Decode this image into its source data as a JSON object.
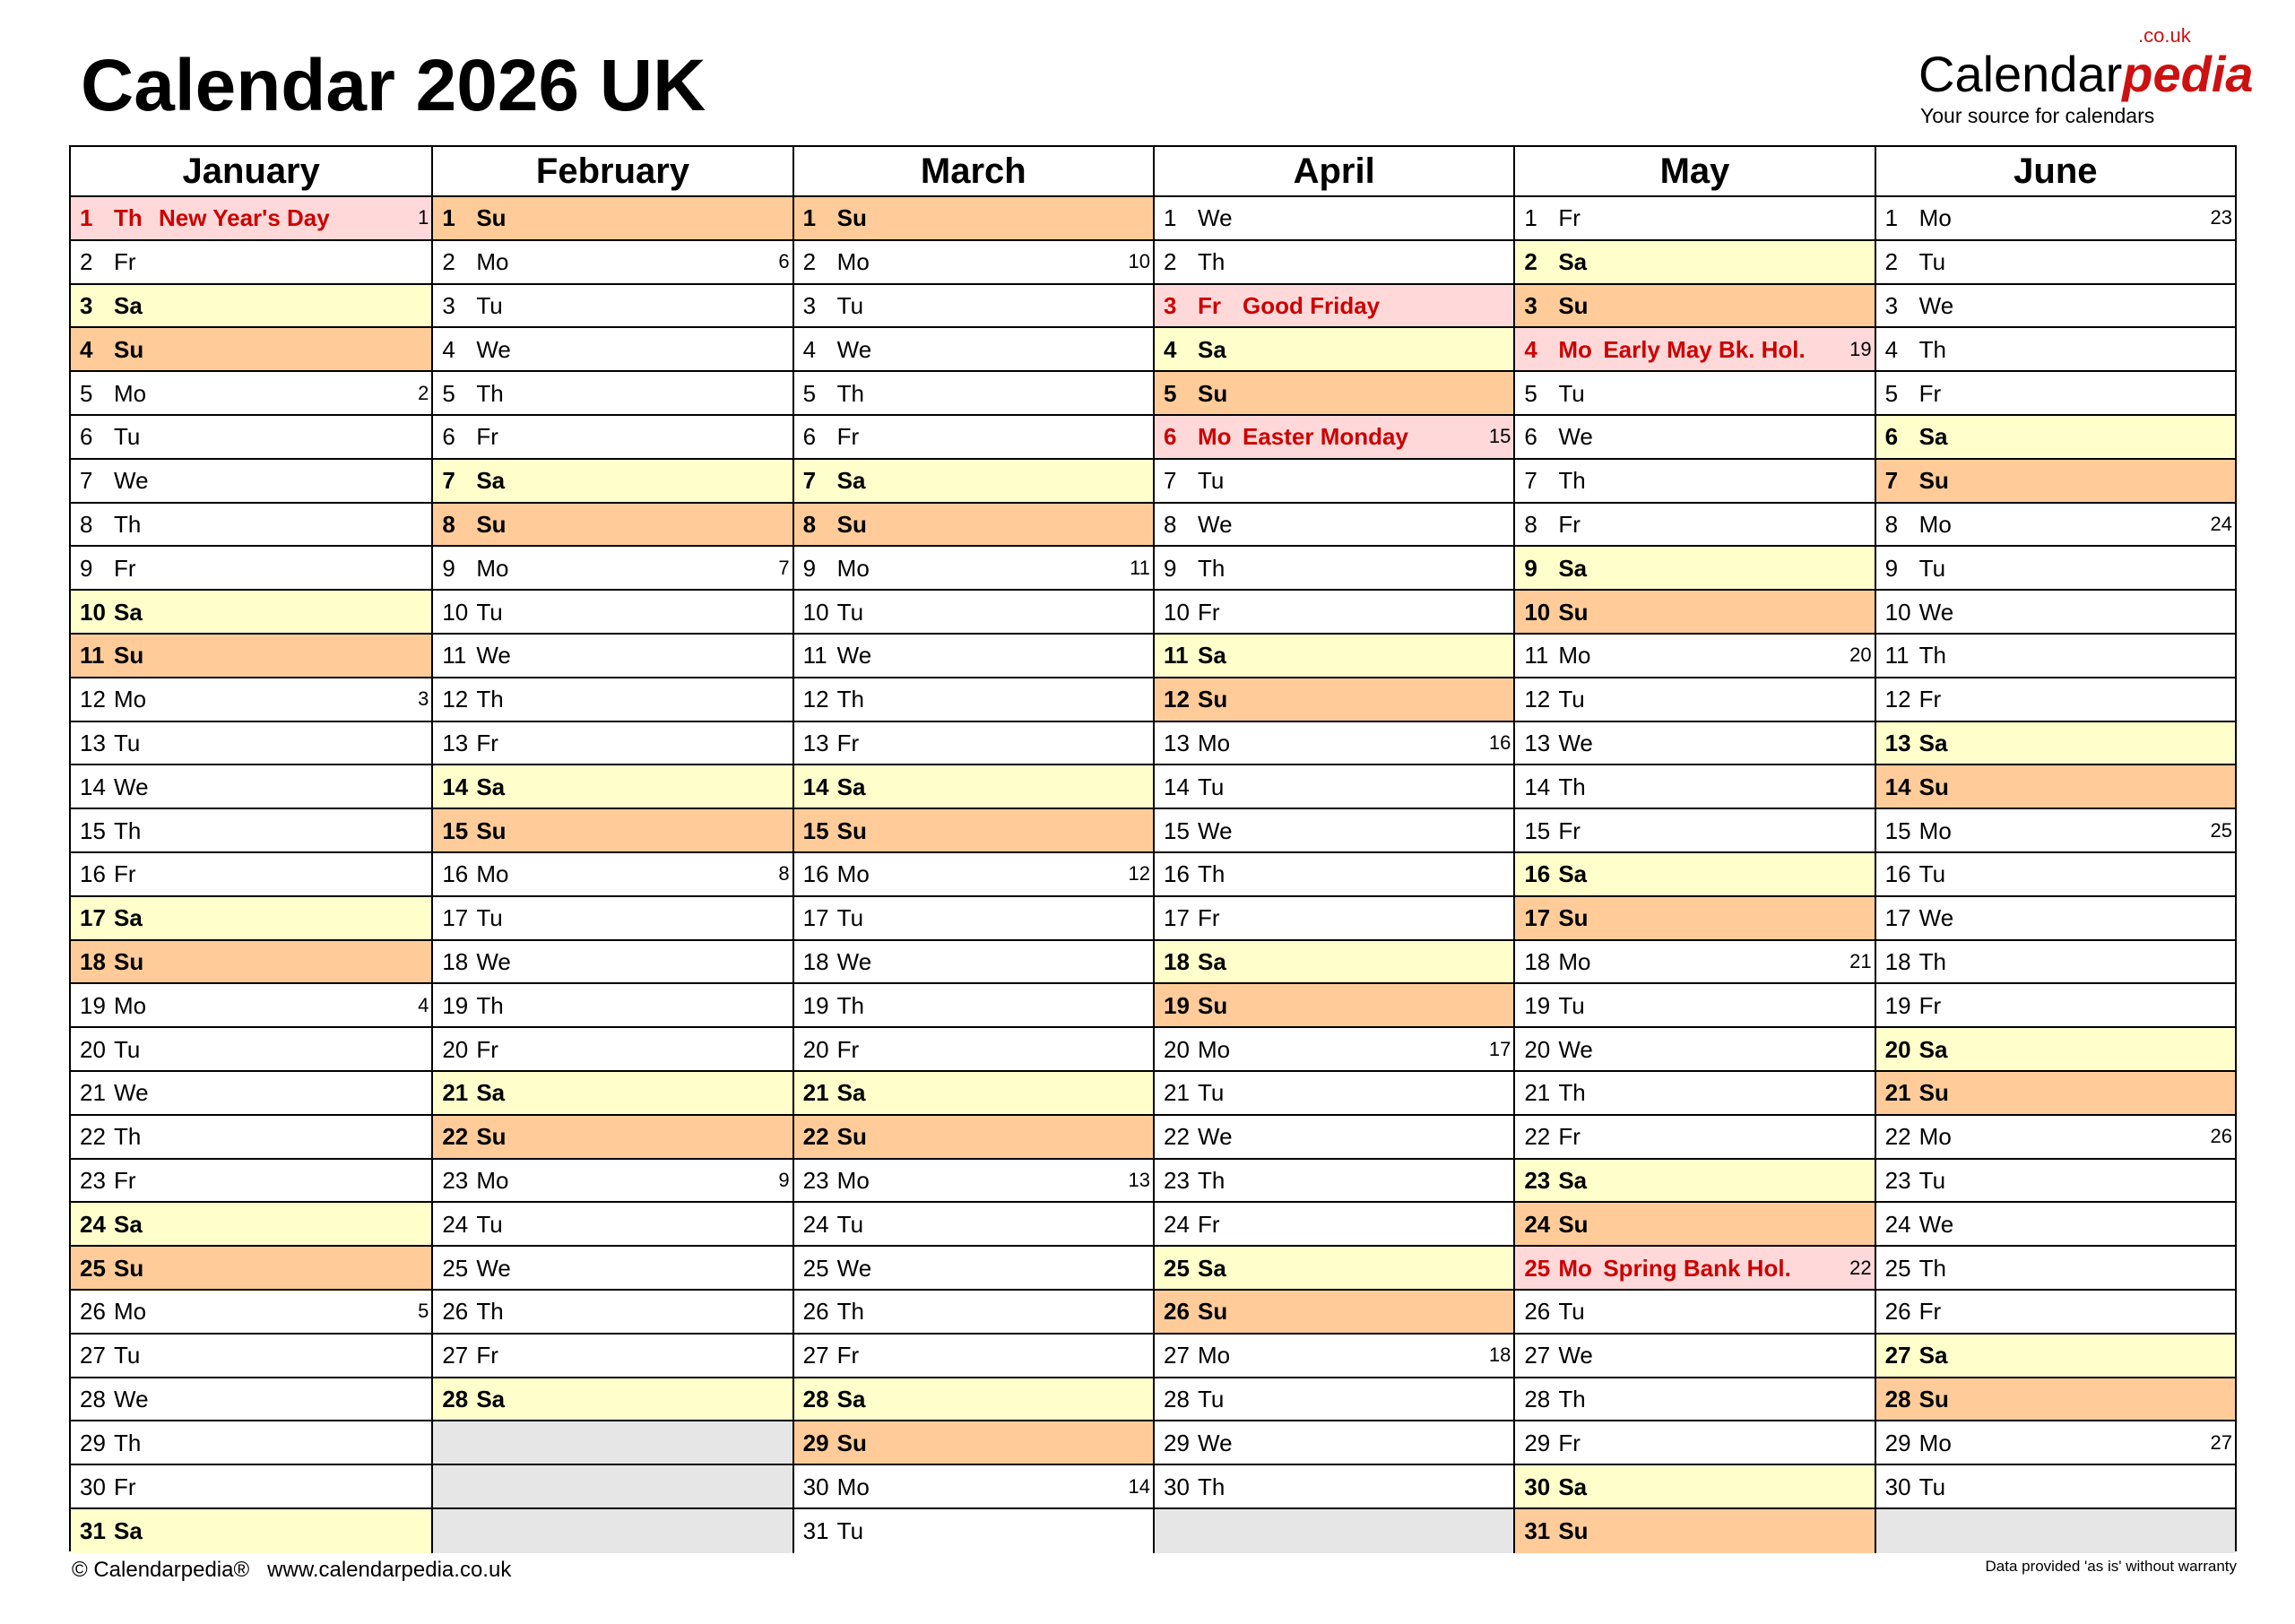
{
  "title": "Calendar 2026 UK",
  "logo": {
    "brand_main": "Calendar",
    "brand_accent": "pedia",
    "domain": ".co.uk",
    "tagline": "Your source for calendars"
  },
  "colors": {
    "saturday": "#ffffcc",
    "sunday": "#ffcc99",
    "holiday": "#ffd9d9",
    "holiday_text": "#cc0000",
    "empty": "#e6e6e6"
  },
  "months": [
    {
      "name": "January",
      "days": [
        [
          "1",
          "Th",
          "1",
          "New Year's Day"
        ],
        [
          "2",
          "Fr",
          "",
          ""
        ],
        [
          "3",
          "Sa",
          "",
          ""
        ],
        [
          "4",
          "Su",
          "",
          ""
        ],
        [
          "5",
          "Mo",
          "2",
          ""
        ],
        [
          "6",
          "Tu",
          "",
          ""
        ],
        [
          "7",
          "We",
          "",
          ""
        ],
        [
          "8",
          "Th",
          "",
          ""
        ],
        [
          "9",
          "Fr",
          "",
          ""
        ],
        [
          "10",
          "Sa",
          "",
          ""
        ],
        [
          "11",
          "Su",
          "",
          ""
        ],
        [
          "12",
          "Mo",
          "3",
          ""
        ],
        [
          "13",
          "Tu",
          "",
          ""
        ],
        [
          "14",
          "We",
          "",
          ""
        ],
        [
          "15",
          "Th",
          "",
          ""
        ],
        [
          "16",
          "Fr",
          "",
          ""
        ],
        [
          "17",
          "Sa",
          "",
          ""
        ],
        [
          "18",
          "Su",
          "",
          ""
        ],
        [
          "19",
          "Mo",
          "4",
          ""
        ],
        [
          "20",
          "Tu",
          "",
          ""
        ],
        [
          "21",
          "We",
          "",
          ""
        ],
        [
          "22",
          "Th",
          "",
          ""
        ],
        [
          "23",
          "Fr",
          "",
          ""
        ],
        [
          "24",
          "Sa",
          "",
          ""
        ],
        [
          "25",
          "Su",
          "",
          ""
        ],
        [
          "26",
          "Mo",
          "5",
          ""
        ],
        [
          "27",
          "Tu",
          "",
          ""
        ],
        [
          "28",
          "We",
          "",
          ""
        ],
        [
          "29",
          "Th",
          "",
          ""
        ],
        [
          "30",
          "Fr",
          "",
          ""
        ],
        [
          "31",
          "Sa",
          "",
          ""
        ]
      ]
    },
    {
      "name": "February",
      "days": [
        [
          "1",
          "Su",
          "",
          ""
        ],
        [
          "2",
          "Mo",
          "6",
          ""
        ],
        [
          "3",
          "Tu",
          "",
          ""
        ],
        [
          "4",
          "We",
          "",
          ""
        ],
        [
          "5",
          "Th",
          "",
          ""
        ],
        [
          "6",
          "Fr",
          "",
          ""
        ],
        [
          "7",
          "Sa",
          "",
          ""
        ],
        [
          "8",
          "Su",
          "",
          ""
        ],
        [
          "9",
          "Mo",
          "7",
          ""
        ],
        [
          "10",
          "Tu",
          "",
          ""
        ],
        [
          "11",
          "We",
          "",
          ""
        ],
        [
          "12",
          "Th",
          "",
          ""
        ],
        [
          "13",
          "Fr",
          "",
          ""
        ],
        [
          "14",
          "Sa",
          "",
          ""
        ],
        [
          "15",
          "Su",
          "",
          ""
        ],
        [
          "16",
          "Mo",
          "8",
          ""
        ],
        [
          "17",
          "Tu",
          "",
          ""
        ],
        [
          "18",
          "We",
          "",
          ""
        ],
        [
          "19",
          "Th",
          "",
          ""
        ],
        [
          "20",
          "Fr",
          "",
          ""
        ],
        [
          "21",
          "Sa",
          "",
          ""
        ],
        [
          "22",
          "Su",
          "",
          ""
        ],
        [
          "23",
          "Mo",
          "9",
          ""
        ],
        [
          "24",
          "Tu",
          "",
          ""
        ],
        [
          "25",
          "We",
          "",
          ""
        ],
        [
          "26",
          "Th",
          "",
          ""
        ],
        [
          "27",
          "Fr",
          "",
          ""
        ],
        [
          "28",
          "Sa",
          "",
          ""
        ]
      ]
    },
    {
      "name": "March",
      "days": [
        [
          "1",
          "Su",
          "",
          ""
        ],
        [
          "2",
          "Mo",
          "10",
          ""
        ],
        [
          "3",
          "Tu",
          "",
          ""
        ],
        [
          "4",
          "We",
          "",
          ""
        ],
        [
          "5",
          "Th",
          "",
          ""
        ],
        [
          "6",
          "Fr",
          "",
          ""
        ],
        [
          "7",
          "Sa",
          "",
          ""
        ],
        [
          "8",
          "Su",
          "",
          ""
        ],
        [
          "9",
          "Mo",
          "11",
          ""
        ],
        [
          "10",
          "Tu",
          "",
          ""
        ],
        [
          "11",
          "We",
          "",
          ""
        ],
        [
          "12",
          "Th",
          "",
          ""
        ],
        [
          "13",
          "Fr",
          "",
          ""
        ],
        [
          "14",
          "Sa",
          "",
          ""
        ],
        [
          "15",
          "Su",
          "",
          ""
        ],
        [
          "16",
          "Mo",
          "12",
          ""
        ],
        [
          "17",
          "Tu",
          "",
          ""
        ],
        [
          "18",
          "We",
          "",
          ""
        ],
        [
          "19",
          "Th",
          "",
          ""
        ],
        [
          "20",
          "Fr",
          "",
          ""
        ],
        [
          "21",
          "Sa",
          "",
          ""
        ],
        [
          "22",
          "Su",
          "",
          ""
        ],
        [
          "23",
          "Mo",
          "13",
          ""
        ],
        [
          "24",
          "Tu",
          "",
          ""
        ],
        [
          "25",
          "We",
          "",
          ""
        ],
        [
          "26",
          "Th",
          "",
          ""
        ],
        [
          "27",
          "Fr",
          "",
          ""
        ],
        [
          "28",
          "Sa",
          "",
          ""
        ],
        [
          "29",
          "Su",
          "",
          ""
        ],
        [
          "30",
          "Mo",
          "14",
          ""
        ],
        [
          "31",
          "Tu",
          "",
          ""
        ]
      ]
    },
    {
      "name": "April",
      "days": [
        [
          "1",
          "We",
          "",
          ""
        ],
        [
          "2",
          "Th",
          "",
          ""
        ],
        [
          "3",
          "Fr",
          "",
          "Good Friday"
        ],
        [
          "4",
          "Sa",
          "",
          ""
        ],
        [
          "5",
          "Su",
          "",
          ""
        ],
        [
          "6",
          "Mo",
          "15",
          "Easter Monday"
        ],
        [
          "7",
          "Tu",
          "",
          ""
        ],
        [
          "8",
          "We",
          "",
          ""
        ],
        [
          "9",
          "Th",
          "",
          ""
        ],
        [
          "10",
          "Fr",
          "",
          ""
        ],
        [
          "11",
          "Sa",
          "",
          ""
        ],
        [
          "12",
          "Su",
          "",
          ""
        ],
        [
          "13",
          "Mo",
          "16",
          ""
        ],
        [
          "14",
          "Tu",
          "",
          ""
        ],
        [
          "15",
          "We",
          "",
          ""
        ],
        [
          "16",
          "Th",
          "",
          ""
        ],
        [
          "17",
          "Fr",
          "",
          ""
        ],
        [
          "18",
          "Sa",
          "",
          ""
        ],
        [
          "19",
          "Su",
          "",
          ""
        ],
        [
          "20",
          "Mo",
          "17",
          ""
        ],
        [
          "21",
          "Tu",
          "",
          ""
        ],
        [
          "22",
          "We",
          "",
          ""
        ],
        [
          "23",
          "Th",
          "",
          ""
        ],
        [
          "24",
          "Fr",
          "",
          ""
        ],
        [
          "25",
          "Sa",
          "",
          ""
        ],
        [
          "26",
          "Su",
          "",
          ""
        ],
        [
          "27",
          "Mo",
          "18",
          ""
        ],
        [
          "28",
          "Tu",
          "",
          ""
        ],
        [
          "29",
          "We",
          "",
          ""
        ],
        [
          "30",
          "Th",
          "",
          ""
        ]
      ]
    },
    {
      "name": "May",
      "days": [
        [
          "1",
          "Fr",
          "",
          ""
        ],
        [
          "2",
          "Sa",
          "",
          ""
        ],
        [
          "3",
          "Su",
          "",
          ""
        ],
        [
          "4",
          "Mo",
          "19",
          "Early May Bk. Hol."
        ],
        [
          "5",
          "Tu",
          "",
          ""
        ],
        [
          "6",
          "We",
          "",
          ""
        ],
        [
          "7",
          "Th",
          "",
          ""
        ],
        [
          "8",
          "Fr",
          "",
          ""
        ],
        [
          "9",
          "Sa",
          "",
          ""
        ],
        [
          "10",
          "Su",
          "",
          ""
        ],
        [
          "11",
          "Mo",
          "20",
          ""
        ],
        [
          "12",
          "Tu",
          "",
          ""
        ],
        [
          "13",
          "We",
          "",
          ""
        ],
        [
          "14",
          "Th",
          "",
          ""
        ],
        [
          "15",
          "Fr",
          "",
          ""
        ],
        [
          "16",
          "Sa",
          "",
          ""
        ],
        [
          "17",
          "Su",
          "",
          ""
        ],
        [
          "18",
          "Mo",
          "21",
          ""
        ],
        [
          "19",
          "Tu",
          "",
          ""
        ],
        [
          "20",
          "We",
          "",
          ""
        ],
        [
          "21",
          "Th",
          "",
          ""
        ],
        [
          "22",
          "Fr",
          "",
          ""
        ],
        [
          "23",
          "Sa",
          "",
          ""
        ],
        [
          "24",
          "Su",
          "",
          ""
        ],
        [
          "25",
          "Mo",
          "22",
          "Spring Bank Hol."
        ],
        [
          "26",
          "Tu",
          "",
          ""
        ],
        [
          "27",
          "We",
          "",
          ""
        ],
        [
          "28",
          "Th",
          "",
          ""
        ],
        [
          "29",
          "Fr",
          "",
          ""
        ],
        [
          "30",
          "Sa",
          "",
          ""
        ],
        [
          "31",
          "Su",
          "",
          ""
        ]
      ]
    },
    {
      "name": "June",
      "days": [
        [
          "1",
          "Mo",
          "23",
          ""
        ],
        [
          "2",
          "Tu",
          "",
          ""
        ],
        [
          "3",
          "We",
          "",
          ""
        ],
        [
          "4",
          "Th",
          "",
          ""
        ],
        [
          "5",
          "Fr",
          "",
          ""
        ],
        [
          "6",
          "Sa",
          "",
          ""
        ],
        [
          "7",
          "Su",
          "",
          ""
        ],
        [
          "8",
          "Mo",
          "24",
          ""
        ],
        [
          "9",
          "Tu",
          "",
          ""
        ],
        [
          "10",
          "We",
          "",
          ""
        ],
        [
          "11",
          "Th",
          "",
          ""
        ],
        [
          "12",
          "Fr",
          "",
          ""
        ],
        [
          "13",
          "Sa",
          "",
          ""
        ],
        [
          "14",
          "Su",
          "",
          ""
        ],
        [
          "15",
          "Mo",
          "25",
          ""
        ],
        [
          "16",
          "Tu",
          "",
          ""
        ],
        [
          "17",
          "We",
          "",
          ""
        ],
        [
          "18",
          "Th",
          "",
          ""
        ],
        [
          "19",
          "Fr",
          "",
          ""
        ],
        [
          "20",
          "Sa",
          "",
          ""
        ],
        [
          "21",
          "Su",
          "",
          ""
        ],
        [
          "22",
          "Mo",
          "26",
          ""
        ],
        [
          "23",
          "Tu",
          "",
          ""
        ],
        [
          "24",
          "We",
          "",
          ""
        ],
        [
          "25",
          "Th",
          "",
          ""
        ],
        [
          "26",
          "Fr",
          "",
          ""
        ],
        [
          "27",
          "Sa",
          "",
          ""
        ],
        [
          "28",
          "Su",
          "",
          ""
        ],
        [
          "29",
          "Mo",
          "27",
          ""
        ],
        [
          "30",
          "Tu",
          "",
          ""
        ]
      ]
    }
  ],
  "footer": {
    "left": "© Calendarpedia®   www.calendarpedia.co.uk",
    "right": "Data provided 'as is' without warranty"
  }
}
